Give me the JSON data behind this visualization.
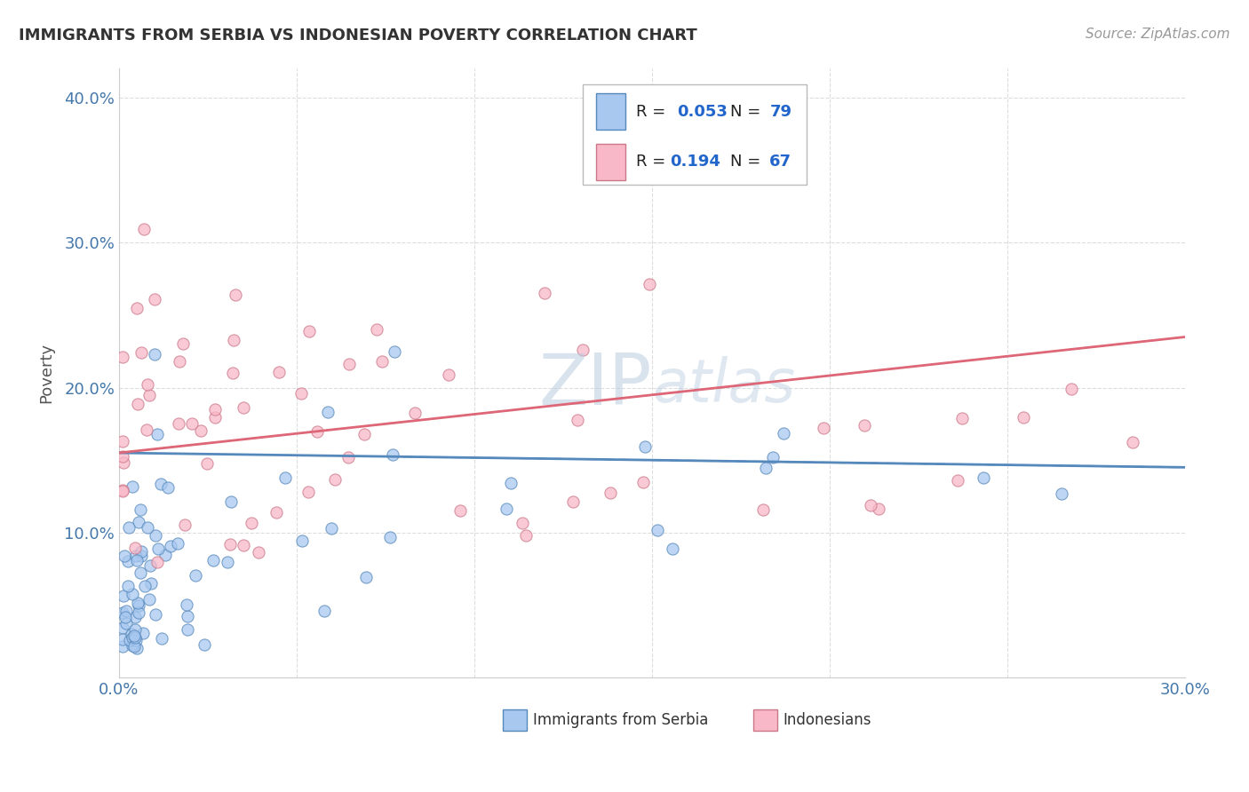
{
  "title": "IMMIGRANTS FROM SERBIA VS INDONESIAN POVERTY CORRELATION CHART",
  "source_text": "Source: ZipAtlas.com",
  "ylabel": "Poverty",
  "xlim": [
    0.0,
    0.3
  ],
  "ylim": [
    0.0,
    0.42
  ],
  "x_ticks": [
    0.0,
    0.05,
    0.1,
    0.15,
    0.2,
    0.25,
    0.3
  ],
  "x_tick_labels": [
    "0.0%",
    "",
    "",
    "",
    "",
    "",
    "30.0%"
  ],
  "y_ticks": [
    0.0,
    0.1,
    0.2,
    0.3,
    0.4
  ],
  "y_tick_labels": [
    "",
    "10.0%",
    "20.0%",
    "30.0%",
    "40.0%"
  ],
  "serbia_color": "#a8c8f0",
  "serbian_border_color": "#5588bb",
  "indonesia_color": "#f8b8c8",
  "indonesia_border_color": "#cc7788",
  "trendline_serbia_color": "#5588bb",
  "trendline_indonesia_color": "#dd6677",
  "watermark_color": "#c8ddf0",
  "background_color": "#ffffff",
  "grid_color": "#dddddd",
  "title_color": "#333333",
  "source_color": "#999999",
  "tick_color": "#4477aa",
  "ylabel_color": "#555555"
}
